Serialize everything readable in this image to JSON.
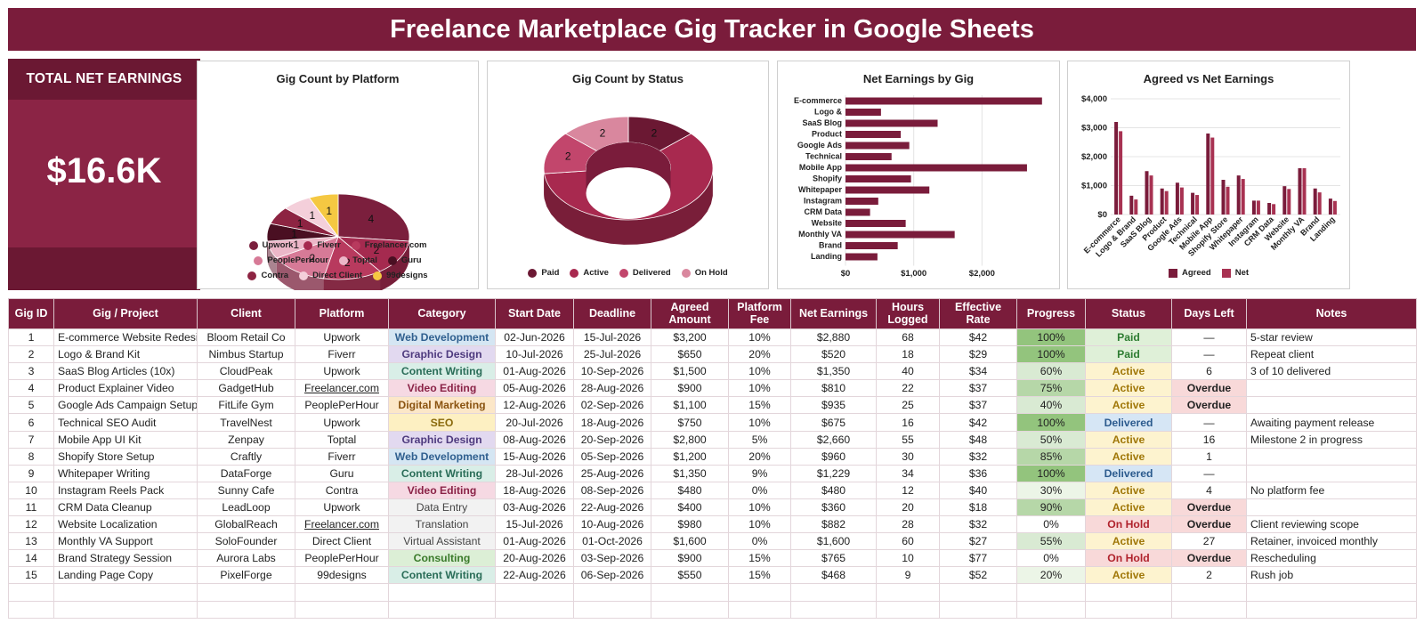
{
  "title": "Freelance Marketplace Gig Tracker in Google Sheets",
  "kpi": {
    "label": "TOTAL NET EARNINGS",
    "value": "$16.6K"
  },
  "charts": {
    "platform": {
      "title": "Gig Count by Platform",
      "chart_data": {
        "type": "pie",
        "categories": [
          "Upwork",
          "Fiverr",
          "Freelancer.com",
          "PeoplePerHour",
          "Toptal",
          "Guru",
          "Contra",
          "Direct Client",
          "99designs"
        ],
        "values": [
          4,
          2,
          2,
          2,
          1,
          1,
          1,
          1,
          1
        ],
        "colors": [
          "#7b1f3d",
          "#a52a4f",
          "#b83a5e",
          "#d77a97",
          "#ecb7c8",
          "#4a0f22",
          "#8d2442",
          "#f4cfda",
          "#f5c842"
        ]
      }
    },
    "status": {
      "title": "Gig Count by Status",
      "chart_data": {
        "type": "pie",
        "categories": [
          "Paid",
          "Active",
          "Delivered",
          "On Hold"
        ],
        "values": [
          2,
          9,
          2,
          2
        ],
        "colors": [
          "#6b1833",
          "#a8294f",
          "#c2466c",
          "#d9879e"
        ]
      }
    },
    "net": {
      "title": "Net Earnings by Gig",
      "chart_data": {
        "type": "bar",
        "orientation": "horizontal",
        "categories": [
          "E-commerce",
          "Logo &",
          "SaaS Blog",
          "Product",
          "Google Ads",
          "Technical",
          "Mobile App",
          "Shopify",
          "Whitepaper",
          "Instagram",
          "CRM Data",
          "Website",
          "Monthly VA",
          "Brand",
          "Landing"
        ],
        "values": [
          2880,
          520,
          1350,
          810,
          935,
          675,
          2660,
          960,
          1229,
          480,
          360,
          882,
          1600,
          765,
          468
        ],
        "xlim": [
          0,
          3000
        ],
        "ticks": [
          {
            "v": 0,
            "label": "$0"
          },
          {
            "v": 1000,
            "label": "$1,000"
          },
          {
            "v": 2000,
            "label": "$2,000"
          }
        ],
        "color": "#7a1c3b"
      }
    },
    "agreed": {
      "title": "Agreed vs Net Earnings",
      "chart_data": {
        "type": "bar",
        "categories": [
          "E-commerce",
          "Logo & Brand",
          "SaaS Blog",
          "Product",
          "Google Ads",
          "Technical",
          "Mobile App",
          "Shopify Store",
          "Whitepaper",
          "Instagram",
          "CRM Data",
          "Website",
          "Monthly VA",
          "Brand",
          "Landing"
        ],
        "series": [
          {
            "name": "Agreed",
            "values": [
              3200,
              650,
              1500,
              900,
              1100,
              750,
              2800,
              1200,
              1350,
              480,
              400,
              980,
              1600,
              900,
              550
            ],
            "color": "#7a1c3b"
          },
          {
            "name": "Net",
            "values": [
              2880,
              520,
              1350,
              810,
              935,
              675,
              2660,
              960,
              1229,
              480,
              360,
              882,
              1600,
              765,
              468
            ],
            "color": "#a83252"
          }
        ],
        "ylim": [
          0,
          4000
        ],
        "ticks": [
          {
            "v": 0,
            "label": "$0"
          },
          {
            "v": 1000,
            "label": "$1,000"
          },
          {
            "v": 2000,
            "label": "$2,000"
          },
          {
            "v": 3000,
            "label": "$3,000"
          },
          {
            "v": 4000,
            "label": "$4,000"
          }
        ]
      }
    }
  },
  "table": {
    "headers": [
      "Gig ID",
      "Gig / Project",
      "Client",
      "Platform",
      "Category",
      "Start Date",
      "Deadline",
      "Agreed Amount",
      "Platform Fee",
      "Net Earnings",
      "Hours Logged",
      "Effective Rate",
      "Progress",
      "Status",
      "Days Left",
      "Notes"
    ],
    "rows": [
      [
        "1",
        "E-commerce Website Redesign",
        "Bloom Retail Co",
        "Upwork",
        "Web Development",
        "02-Jun-2026",
        "15-Jul-2026",
        "$3,200",
        "10%",
        "$2,880",
        "68",
        "$42",
        "100%",
        "Paid",
        "—",
        "5-star review"
      ],
      [
        "2",
        "Logo & Brand Kit",
        "Nimbus Startup",
        "Fiverr",
        "Graphic Design",
        "10-Jul-2026",
        "25-Jul-2026",
        "$650",
        "20%",
        "$520",
        "18",
        "$29",
        "100%",
        "Paid",
        "—",
        "Repeat client"
      ],
      [
        "3",
        "SaaS Blog Articles (10x)",
        "CloudPeak",
        "Upwork",
        "Content Writing",
        "01-Aug-2026",
        "10-Sep-2026",
        "$1,500",
        "10%",
        "$1,350",
        "40",
        "$34",
        "60%",
        "Active",
        "6",
        "3 of 10 delivered"
      ],
      [
        "4",
        "Product Explainer Video",
        "GadgetHub",
        "Freelancer.com",
        "Video Editing",
        "05-Aug-2026",
        "28-Aug-2026",
        "$900",
        "10%",
        "$810",
        "22",
        "$37",
        "75%",
        "Active",
        "Overdue",
        ""
      ],
      [
        "5",
        "Google Ads Campaign Setup",
        "FitLife Gym",
        "PeoplePerHour",
        "Digital Marketing",
        "12-Aug-2026",
        "02-Sep-2026",
        "$1,100",
        "15%",
        "$935",
        "25",
        "$37",
        "40%",
        "Active",
        "Overdue",
        ""
      ],
      [
        "6",
        "Technical SEO Audit",
        "TravelNest",
        "Upwork",
        "SEO",
        "20-Jul-2026",
        "18-Aug-2026",
        "$750",
        "10%",
        "$675",
        "16",
        "$42",
        "100%",
        "Delivered",
        "—",
        "Awaiting payment release"
      ],
      [
        "7",
        "Mobile App UI Kit",
        "Zenpay",
        "Toptal",
        "Graphic Design",
        "08-Aug-2026",
        "20-Sep-2026",
        "$2,800",
        "5%",
        "$2,660",
        "55",
        "$48",
        "50%",
        "Active",
        "16",
        "Milestone 2 in progress"
      ],
      [
        "8",
        "Shopify Store Setup",
        "Craftly",
        "Fiverr",
        "Web Development",
        "15-Aug-2026",
        "05-Sep-2026",
        "$1,200",
        "20%",
        "$960",
        "30",
        "$32",
        "85%",
        "Active",
        "1",
        ""
      ],
      [
        "9",
        "Whitepaper Writing",
        "DataForge",
        "Guru",
        "Content Writing",
        "28-Jul-2026",
        "25-Aug-2026",
        "$1,350",
        "9%",
        "$1,229",
        "34",
        "$36",
        "100%",
        "Delivered",
        "—",
        ""
      ],
      [
        "10",
        "Instagram Reels Pack",
        "Sunny Cafe",
        "Contra",
        "Video Editing",
        "18-Aug-2026",
        "08-Sep-2026",
        "$480",
        "0%",
        "$480",
        "12",
        "$40",
        "30%",
        "Active",
        "4",
        "No platform fee"
      ],
      [
        "11",
        "CRM Data Cleanup",
        "LeadLoop",
        "Upwork",
        "Data Entry",
        "03-Aug-2026",
        "22-Aug-2026",
        "$400",
        "10%",
        "$360",
        "20",
        "$18",
        "90%",
        "Active",
        "Overdue",
        ""
      ],
      [
        "12",
        "Website Localization",
        "GlobalReach",
        "Freelancer.com",
        "Translation",
        "15-Jul-2026",
        "10-Aug-2026",
        "$980",
        "10%",
        "$882",
        "28",
        "$32",
        "0%",
        "On Hold",
        "Overdue",
        "Client reviewing scope"
      ],
      [
        "13",
        "Monthly VA Support",
        "SoloFounder",
        "Direct Client",
        "Virtual Assistant",
        "01-Aug-2026",
        "01-Oct-2026",
        "$1,600",
        "0%",
        "$1,600",
        "60",
        "$27",
        "55%",
        "Active",
        "27",
        "Retainer, invoiced monthly"
      ],
      [
        "14",
        "Brand Strategy Session",
        "Aurora Labs",
        "PeoplePerHour",
        "Consulting",
        "20-Aug-2026",
        "03-Sep-2026",
        "$900",
        "15%",
        "$765",
        "10",
        "$77",
        "0%",
        "On Hold",
        "Overdue",
        "Rescheduling"
      ],
      [
        "15",
        "Landing Page Copy",
        "PixelForge",
        "99designs",
        "Content Writing",
        "22-Aug-2026",
        "06-Sep-2026",
        "$550",
        "15%",
        "$468",
        "9",
        "$52",
        "20%",
        "Active",
        "2",
        "Rush job"
      ]
    ],
    "empty_rows": 2,
    "category_styles": {
      "Web Development": {
        "bg": "#d5e6f3",
        "fg": "#2f5f8f"
      },
      "Graphic Design": {
        "bg": "#e2d9f0",
        "fg": "#4e3a7e"
      },
      "Content Writing": {
        "bg": "#d9eee7",
        "fg": "#2a6d58"
      },
      "Video Editing": {
        "bg": "#f6d9e3",
        "fg": "#8a2347"
      },
      "Digital Marketing": {
        "bg": "#fce7c8",
        "fg": "#8a5310"
      },
      "SEO": {
        "bg": "#fdf0c2",
        "fg": "#8a6a0c"
      },
      "Data Entry": {
        "bg": "#f2f2f2",
        "fg": "#444444"
      },
      "Translation": {
        "bg": "#f2f2f2",
        "fg": "#444444"
      },
      "Virtual Assistant": {
        "bg": "#f2f2f2",
        "fg": "#444444"
      },
      "Consulting": {
        "bg": "#dcefd6",
        "fg": "#3a7a2a"
      }
    },
    "status_styles": {
      "Paid": {
        "bg": "#dff0d8",
        "fg": "#2e7d32"
      },
      "Active": {
        "bg": "#fdf3cf",
        "fg": "#a07708"
      },
      "Delivered": {
        "bg": "#d6e6f5",
        "fg": "#2c5b8e"
      },
      "On Hold": {
        "bg": "#f8d9d9",
        "fg": "#b0232d"
      }
    },
    "progress_styles": {
      "100": "#93c47d",
      "high": "#b6d7a8",
      "mid": "#d9ead3",
      "low": "#ecf5e7",
      "zero": "#ffffff"
    }
  }
}
